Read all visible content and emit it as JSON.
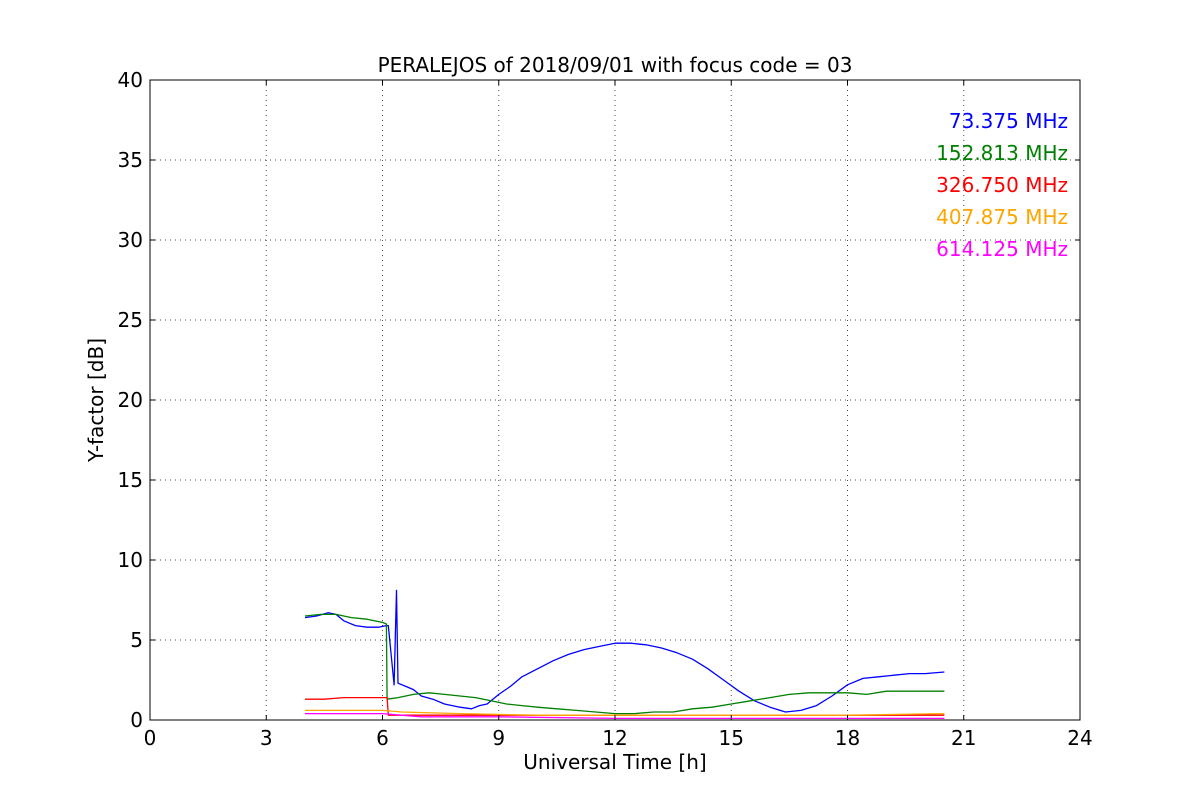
{
  "chart_data": {
    "type": "line",
    "title": "PERALEJOS of 2018/09/01 with focus code = 03",
    "xlabel": "Universal Time [h]",
    "ylabel": "Y-factor [dB]",
    "xlim": [
      0,
      24
    ],
    "ylim": [
      0,
      40
    ],
    "xticks": [
      0,
      3,
      6,
      9,
      12,
      15,
      18,
      21,
      24
    ],
    "yticks": [
      0,
      5,
      10,
      15,
      20,
      25,
      30,
      35,
      40
    ],
    "grid": true,
    "legend_placement": "top-right",
    "series": [
      {
        "name": "73.375 MHz",
        "color": "#0000ff",
        "points": [
          [
            4.0,
            6.4
          ],
          [
            4.3,
            6.5
          ],
          [
            4.6,
            6.7
          ],
          [
            4.8,
            6.6
          ],
          [
            5.0,
            6.2
          ],
          [
            5.3,
            5.9
          ],
          [
            5.6,
            5.8
          ],
          [
            5.9,
            5.8
          ],
          [
            6.1,
            5.9
          ],
          [
            6.15,
            5.9
          ],
          [
            6.3,
            2.2
          ],
          [
            6.36,
            8.1
          ],
          [
            6.4,
            2.3
          ],
          [
            6.6,
            2.1
          ],
          [
            6.8,
            1.9
          ],
          [
            7.0,
            1.5
          ],
          [
            7.3,
            1.3
          ],
          [
            7.6,
            1.0
          ],
          [
            8.0,
            0.8
          ],
          [
            8.3,
            0.7
          ],
          [
            8.5,
            0.9
          ],
          [
            8.7,
            1.0
          ],
          [
            9.0,
            1.6
          ],
          [
            9.3,
            2.1
          ],
          [
            9.6,
            2.7
          ],
          [
            10.0,
            3.2
          ],
          [
            10.4,
            3.7
          ],
          [
            10.8,
            4.1
          ],
          [
            11.2,
            4.4
          ],
          [
            11.6,
            4.6
          ],
          [
            12.0,
            4.8
          ],
          [
            12.4,
            4.8
          ],
          [
            12.8,
            4.7
          ],
          [
            13.2,
            4.5
          ],
          [
            13.6,
            4.2
          ],
          [
            14.0,
            3.8
          ],
          [
            14.4,
            3.2
          ],
          [
            14.8,
            2.5
          ],
          [
            15.2,
            1.8
          ],
          [
            15.6,
            1.2
          ],
          [
            16.0,
            0.8
          ],
          [
            16.4,
            0.5
          ],
          [
            16.8,
            0.6
          ],
          [
            17.2,
            0.9
          ],
          [
            17.6,
            1.5
          ],
          [
            18.0,
            2.2
          ],
          [
            18.4,
            2.6
          ],
          [
            18.8,
            2.7
          ],
          [
            19.2,
            2.8
          ],
          [
            19.6,
            2.9
          ],
          [
            20.0,
            2.9
          ],
          [
            20.5,
            3.0
          ]
        ]
      },
      {
        "name": "152.813 MHz",
        "color": "#008000",
        "points": [
          [
            4.0,
            6.5
          ],
          [
            4.4,
            6.6
          ],
          [
            4.8,
            6.6
          ],
          [
            5.2,
            6.4
          ],
          [
            5.6,
            6.3
          ],
          [
            6.0,
            6.1
          ],
          [
            6.1,
            6.0
          ],
          [
            6.12,
            1.3
          ],
          [
            6.4,
            1.4
          ],
          [
            6.8,
            1.6
          ],
          [
            7.2,
            1.7
          ],
          [
            7.6,
            1.6
          ],
          [
            8.0,
            1.5
          ],
          [
            8.4,
            1.4
          ],
          [
            8.8,
            1.2
          ],
          [
            9.2,
            1.0
          ],
          [
            9.6,
            0.9
          ],
          [
            10.0,
            0.8
          ],
          [
            10.5,
            0.7
          ],
          [
            11.0,
            0.6
          ],
          [
            11.5,
            0.5
          ],
          [
            12.0,
            0.4
          ],
          [
            12.5,
            0.4
          ],
          [
            13.0,
            0.5
          ],
          [
            13.5,
            0.5
          ],
          [
            14.0,
            0.7
          ],
          [
            14.5,
            0.8
          ],
          [
            15.0,
            1.0
          ],
          [
            15.5,
            1.2
          ],
          [
            16.0,
            1.4
          ],
          [
            16.5,
            1.6
          ],
          [
            17.0,
            1.7
          ],
          [
            17.5,
            1.7
          ],
          [
            18.0,
            1.7
          ],
          [
            18.5,
            1.6
          ],
          [
            19.0,
            1.8
          ],
          [
            19.5,
            1.8
          ],
          [
            20.0,
            1.8
          ],
          [
            20.5,
            1.8
          ]
        ]
      },
      {
        "name": "326.750 MHz",
        "color": "#ff0000",
        "points": [
          [
            4.0,
            1.3
          ],
          [
            4.5,
            1.3
          ],
          [
            5.0,
            1.4
          ],
          [
            5.5,
            1.4
          ],
          [
            6.0,
            1.4
          ],
          [
            6.12,
            1.4
          ],
          [
            6.15,
            0.3
          ],
          [
            8.0,
            0.3
          ],
          [
            10.0,
            0.3
          ],
          [
            12.0,
            0.3
          ],
          [
            14.0,
            0.3
          ],
          [
            16.0,
            0.3
          ],
          [
            18.0,
            0.3
          ],
          [
            20.5,
            0.3
          ]
        ]
      },
      {
        "name": "407.875 MHz",
        "color": "#ffa500",
        "points": [
          [
            4.0,
            0.6
          ],
          [
            5.0,
            0.6
          ],
          [
            6.0,
            0.6
          ],
          [
            6.5,
            0.5
          ],
          [
            8.0,
            0.4
          ],
          [
            10.0,
            0.3
          ],
          [
            12.0,
            0.3
          ],
          [
            14.0,
            0.3
          ],
          [
            16.0,
            0.3
          ],
          [
            18.0,
            0.3
          ],
          [
            20.5,
            0.4
          ]
        ]
      },
      {
        "name": "614.125 MHz",
        "color": "#ff00ff",
        "points": [
          [
            4.0,
            0.4
          ],
          [
            5.0,
            0.4
          ],
          [
            6.0,
            0.4
          ],
          [
            7.0,
            0.2
          ],
          [
            9.0,
            0.2
          ],
          [
            12.0,
            0.1
          ],
          [
            15.0,
            0.1
          ],
          [
            18.0,
            0.1
          ],
          [
            20.5,
            0.1
          ]
        ]
      }
    ]
  }
}
